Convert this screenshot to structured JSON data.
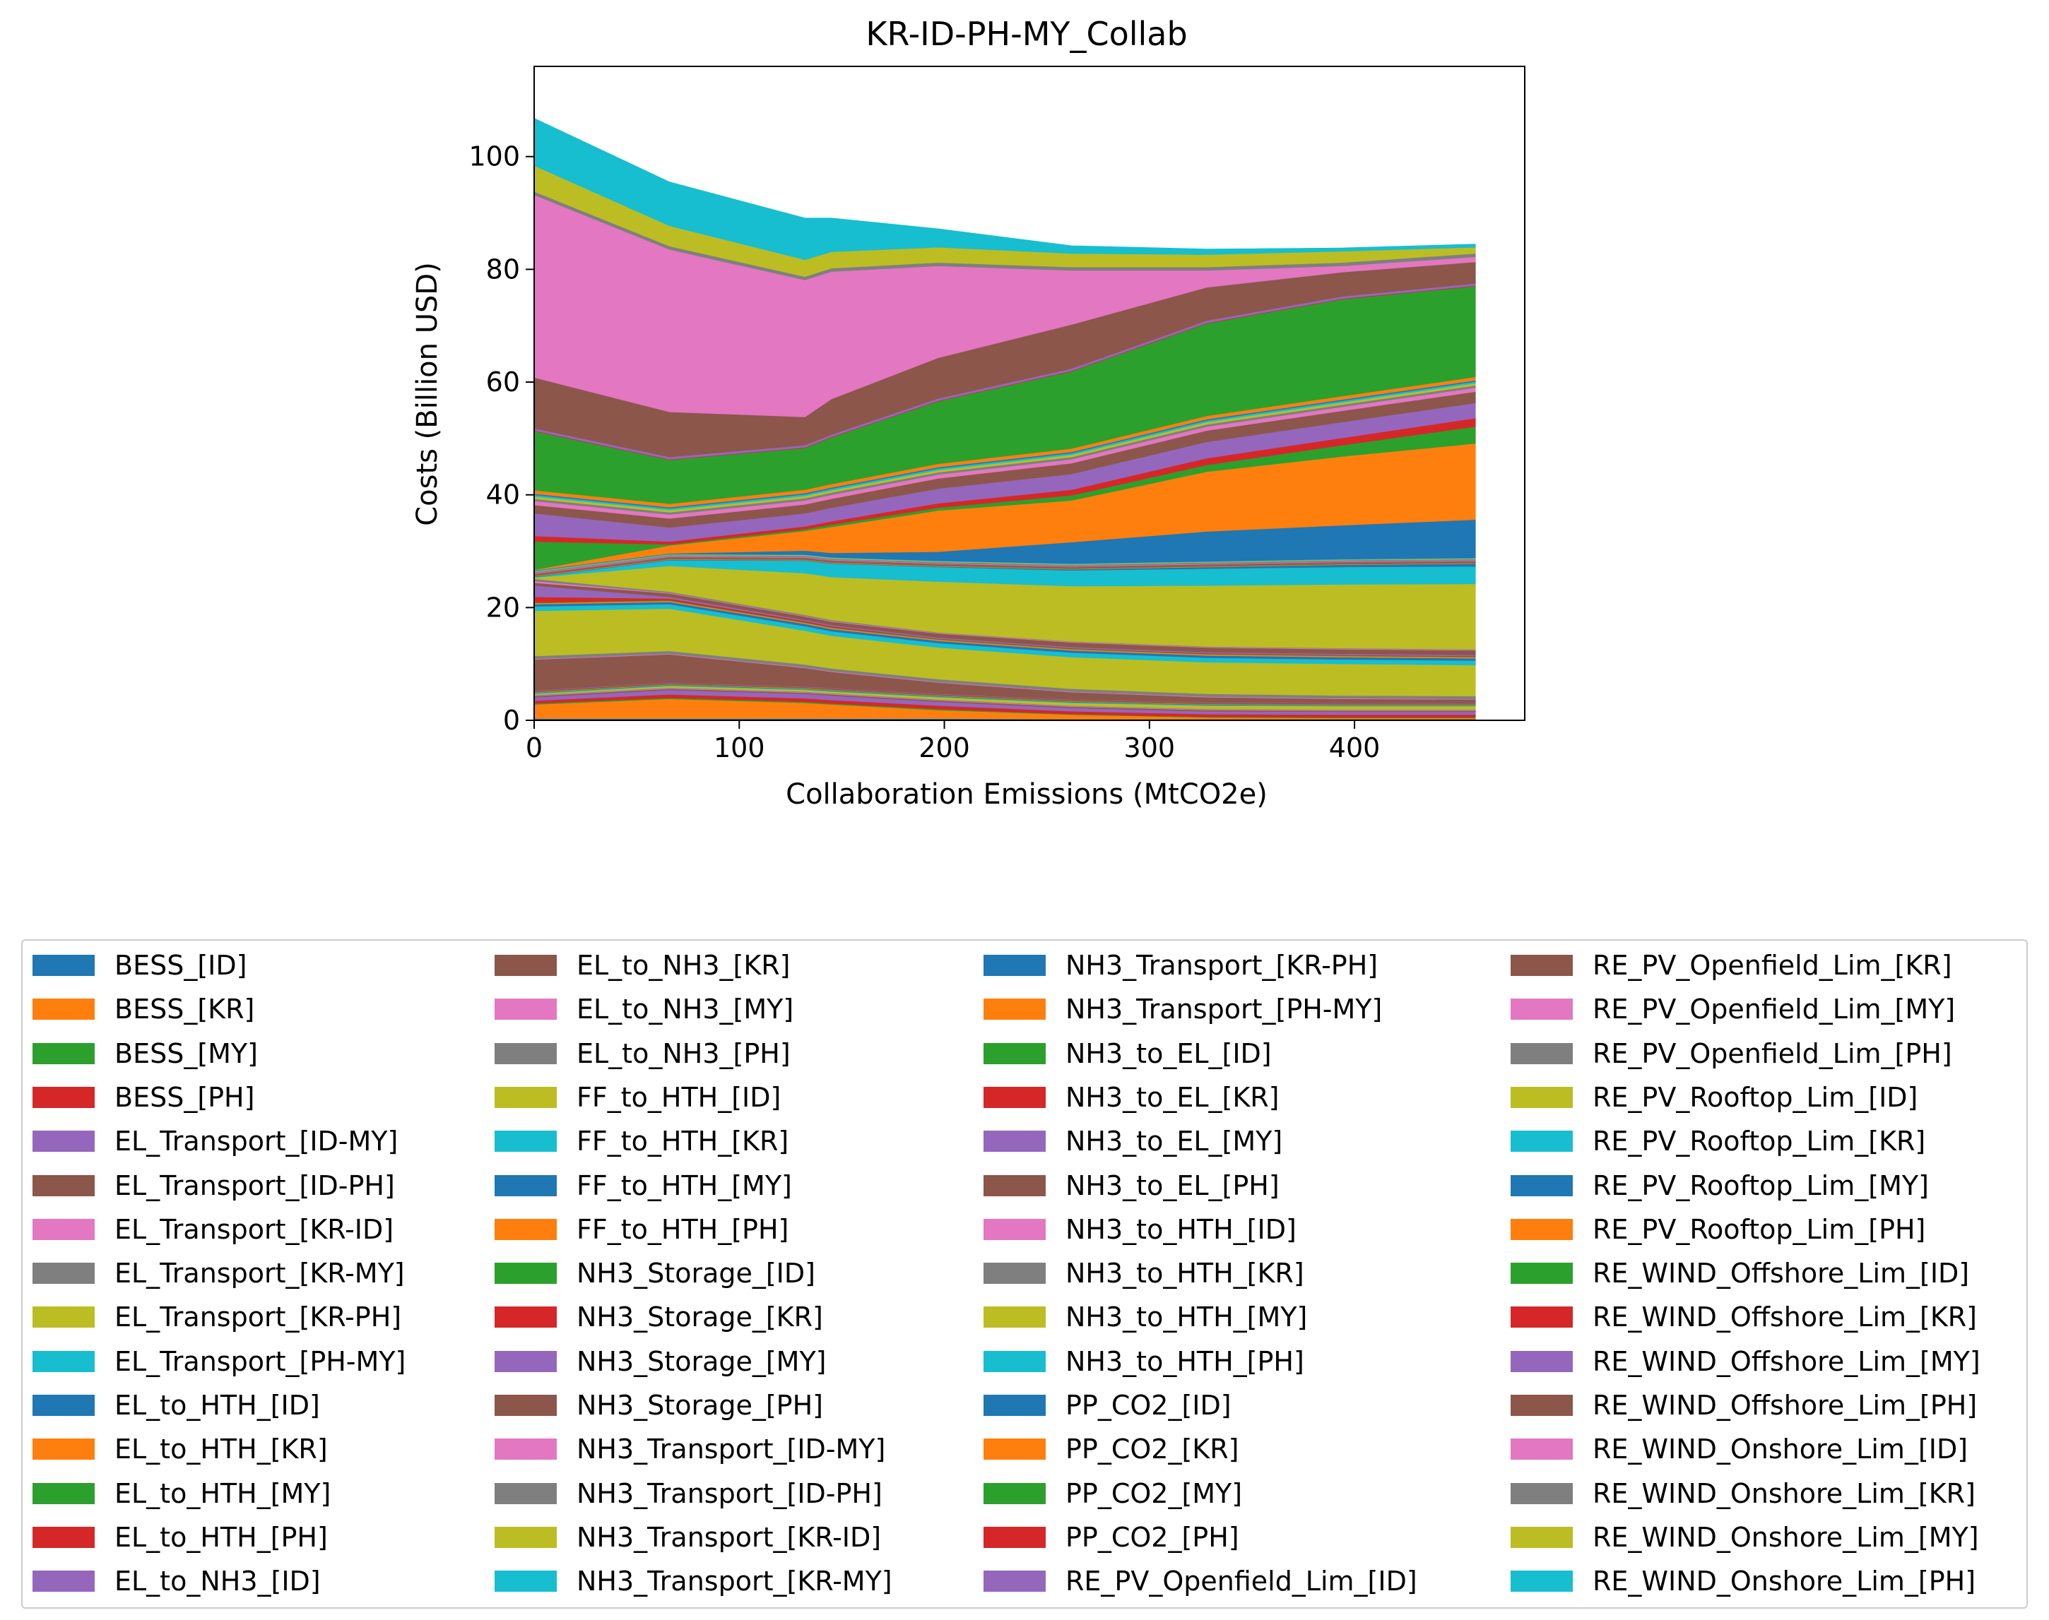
{
  "chart_data": {
    "type": "area",
    "stacked": true,
    "title": "KR-ID-PH-MY_Collab",
    "xlabel": "Collaboration Emissions (MtCO2e)",
    "ylabel": "Costs (Billion USD)",
    "xlim": [
      0,
      483
    ],
    "ylim": [
      0,
      116
    ],
    "xticks": [
      0,
      100,
      200,
      300,
      400
    ],
    "yticks": [
      0,
      20,
      40,
      60,
      80,
      100
    ],
    "x": [
      0,
      66,
      132,
      145,
      197,
      262,
      328,
      394,
      459
    ],
    "series": [
      {
        "name": "BESS_[ID]",
        "color": "#1f77b4",
        "values": [
          0.3,
          0.3,
          0.3,
          0.3,
          0.3,
          0.2,
          0.2,
          0.2,
          0.2
        ]
      },
      {
        "name": "BESS_[KR]",
        "color": "#ff7f0e",
        "values": [
          2.5,
          3.5,
          2.8,
          2.5,
          1.5,
          0.8,
          0.3,
          0.2,
          0.2
        ]
      },
      {
        "name": "BESS_[MY]",
        "color": "#2ca02c",
        "values": [
          0.2,
          0.2,
          0.2,
          0.2,
          0.2,
          0.1,
          0.1,
          0.1,
          0.1
        ]
      },
      {
        "name": "BESS_[PH]",
        "color": "#d62728",
        "values": [
          0.5,
          0.6,
          0.6,
          0.6,
          0.6,
          0.5,
          0.5,
          0.5,
          0.5
        ]
      },
      {
        "name": "EL_Transport_[ID-MY]",
        "color": "#9467bd",
        "values": [
          0.6,
          0.8,
          0.8,
          0.8,
          0.7,
          0.6,
          0.5,
          0.5,
          0.5
        ]
      },
      {
        "name": "EL_Transport_[ID-PH]",
        "color": "#8c564b",
        "values": [
          0.2,
          0.2,
          0.2,
          0.2,
          0.2,
          0.2,
          0.2,
          0.2,
          0.2
        ]
      },
      {
        "name": "EL_Transport_[KR-ID]",
        "color": "#e377c2",
        "values": [
          0.1,
          0.1,
          0.1,
          0.1,
          0.1,
          0.1,
          0.1,
          0.1,
          0.1
        ]
      },
      {
        "name": "EL_Transport_[KR-MY]",
        "color": "#7f7f7f",
        "values": [
          0.1,
          0.1,
          0.1,
          0.1,
          0.1,
          0.1,
          0.1,
          0.1,
          0.1
        ]
      },
      {
        "name": "EL_Transport_[KR-PH]",
        "color": "#bcbd22",
        "values": [
          0.2,
          0.3,
          0.3,
          0.3,
          0.4,
          0.5,
          0.6,
          0.6,
          0.6
        ]
      },
      {
        "name": "EL_Transport_[PH-MY]",
        "color": "#17becf",
        "values": [
          0.1,
          0.1,
          0.1,
          0.1,
          0.1,
          0.1,
          0.1,
          0.1,
          0.1
        ]
      },
      {
        "name": "EL_to_HTH_[ID]",
        "color": "#1f77b4",
        "values": [
          0.1,
          0.1,
          0.1,
          0.1,
          0.1,
          0.1,
          0.1,
          0.1,
          0.1
        ]
      },
      {
        "name": "EL_to_HTH_[KR]",
        "color": "#ff7f0e",
        "values": [
          0.1,
          0.1,
          0.1,
          0.1,
          0.1,
          0.1,
          0.1,
          0.1,
          0.1
        ]
      },
      {
        "name": "EL_to_HTH_[MY]",
        "color": "#2ca02c",
        "values": [
          0.1,
          0.1,
          0.1,
          0.1,
          0.1,
          0.1,
          0.1,
          0.1,
          0.1
        ]
      },
      {
        "name": "EL_to_HTH_[PH]",
        "color": "#d62728",
        "values": [
          0.1,
          0.1,
          0.1,
          0.1,
          0.1,
          0.1,
          0.1,
          0.1,
          0.1
        ]
      },
      {
        "name": "EL_to_NH3_[ID]",
        "color": "#9467bd",
        "values": [
          0.1,
          0.1,
          0.1,
          0.1,
          0.1,
          0.1,
          0.1,
          0.1,
          0.1
        ]
      },
      {
        "name": "EL_to_NH3_[KR]",
        "color": "#8c564b",
        "values": [
          5.5,
          5.0,
          3.3,
          2.9,
          2.0,
          1.3,
          0.9,
          0.7,
          0.6
        ]
      },
      {
        "name": "EL_to_NH3_[MY]",
        "color": "#e377c2",
        "values": [
          0.1,
          0.1,
          0.1,
          0.1,
          0.1,
          0.1,
          0.1,
          0.1,
          0.1
        ]
      },
      {
        "name": "EL_to_NH3_[PH]",
        "color": "#7f7f7f",
        "values": [
          0.5,
          0.5,
          0.5,
          0.5,
          0.5,
          0.5,
          0.5,
          0.5,
          0.5
        ]
      },
      {
        "name": "FF_to_HTH_[ID]",
        "color": "#bcbd22",
        "values": [
          8.0,
          7.5,
          6.0,
          5.8,
          5.6,
          5.6,
          5.6,
          5.6,
          5.5
        ]
      },
      {
        "name": "FF_to_HTH_[KR]",
        "color": "#17becf",
        "values": [
          0.8,
          0.8,
          0.8,
          0.8,
          0.8,
          0.8,
          0.8,
          0.8,
          0.8
        ]
      },
      {
        "name": "FF_to_HTH_[MY]",
        "color": "#1f77b4",
        "values": [
          0.4,
          0.4,
          0.4,
          0.4,
          0.4,
          0.4,
          0.4,
          0.4,
          0.4
        ]
      },
      {
        "name": "FF_to_HTH_[PH]",
        "color": "#ff7f0e",
        "values": [
          0.2,
          0.2,
          0.2,
          0.2,
          0.2,
          0.2,
          0.2,
          0.2,
          0.2
        ]
      },
      {
        "name": "NH3_Storage_[ID]",
        "color": "#2ca02c",
        "values": [
          0.1,
          0.1,
          0.1,
          0.1,
          0.1,
          0.1,
          0.1,
          0.1,
          0.1
        ]
      },
      {
        "name": "NH3_Storage_[KR]",
        "color": "#d62728",
        "values": [
          1.0,
          0.3,
          0.2,
          0.2,
          0.1,
          0.1,
          0.1,
          0.1,
          0.1
        ]
      },
      {
        "name": "NH3_Storage_[MY]",
        "color": "#9467bd",
        "values": [
          2.0,
          0.3,
          0.2,
          0.2,
          0.2,
          0.2,
          0.2,
          0.2,
          0.2
        ]
      },
      {
        "name": "NH3_Storage_[PH]",
        "color": "#8c564b",
        "values": [
          0.5,
          0.6,
          0.6,
          0.6,
          0.7,
          0.8,
          0.8,
          0.8,
          0.8
        ]
      },
      {
        "name": "NH3_Transport_[ID-MY]",
        "color": "#e377c2",
        "values": [
          0.3,
          0.1,
          0.1,
          0.1,
          0.1,
          0.1,
          0.1,
          0.1,
          0.1
        ]
      },
      {
        "name": "NH3_Transport_[ID-PH]",
        "color": "#7f7f7f",
        "values": [
          0.4,
          0.2,
          0.2,
          0.2,
          0.1,
          0.1,
          0.1,
          0.1,
          0.1
        ]
      },
      {
        "name": "NH3_Transport_[KR-ID]",
        "color": "#bcbd22",
        "values": [
          0.2,
          4.6,
          7.4,
          7.6,
          9.0,
          9.8,
          10.8,
          11.3,
          11.6
        ]
      },
      {
        "name": "NH3_Transport_[KR-MY]",
        "color": "#17becf",
        "values": [
          0.1,
          1.0,
          2.2,
          2.4,
          2.6,
          2.8,
          3.0,
          3.1,
          3.1
        ]
      },
      {
        "name": "NH3_Transport_[KR-PH]",
        "color": "#1f77b4",
        "values": [
          0.1,
          0.1,
          0.1,
          0.1,
          0.1,
          0.2,
          0.3,
          0.4,
          0.5
        ]
      },
      {
        "name": "NH3_Transport_[PH-MY]",
        "color": "#ff7f0e",
        "values": [
          0.1,
          0.1,
          0.1,
          0.1,
          0.1,
          0.1,
          0.1,
          0.1,
          0.1
        ]
      },
      {
        "name": "NH3_to_EL_[ID]",
        "color": "#2ca02c",
        "values": [
          0.1,
          0.1,
          0.1,
          0.1,
          0.1,
          0.1,
          0.1,
          0.1,
          0.1
        ]
      },
      {
        "name": "NH3_to_EL_[KR]",
        "color": "#d62728",
        "values": [
          0.1,
          0.1,
          0.1,
          0.1,
          0.1,
          0.1,
          0.1,
          0.1,
          0.1
        ]
      },
      {
        "name": "NH3_to_EL_[MY]",
        "color": "#9467bd",
        "values": [
          0.1,
          0.1,
          0.1,
          0.1,
          0.1,
          0.1,
          0.1,
          0.1,
          0.1
        ]
      },
      {
        "name": "NH3_to_EL_[PH]",
        "color": "#8c564b",
        "values": [
          0.1,
          0.1,
          0.1,
          0.1,
          0.1,
          0.1,
          0.1,
          0.1,
          0.1
        ]
      },
      {
        "name": "NH3_to_HTH_[ID]",
        "color": "#e377c2",
        "values": [
          0.1,
          0.1,
          0.1,
          0.1,
          0.1,
          0.1,
          0.1,
          0.1,
          0.1
        ]
      },
      {
        "name": "NH3_to_HTH_[KR]",
        "color": "#7f7f7f",
        "values": [
          0.2,
          0.2,
          0.2,
          0.2,
          0.2,
          0.2,
          0.2,
          0.2,
          0.2
        ]
      },
      {
        "name": "NH3_to_HTH_[MY]",
        "color": "#bcbd22",
        "values": [
          0.1,
          0.1,
          0.1,
          0.1,
          0.1,
          0.1,
          0.1,
          0.1,
          0.1
        ]
      },
      {
        "name": "NH3_to_HTH_[PH]",
        "color": "#17becf",
        "values": [
          0.1,
          0.1,
          0.1,
          0.1,
          0.1,
          0.1,
          0.1,
          0.1,
          0.1
        ]
      },
      {
        "name": "PP_CO2_[ID]",
        "color": "#1f77b4",
        "values": [
          0.1,
          0.1,
          0.7,
          0.8,
          1.6,
          3.8,
          5.3,
          6.0,
          6.8
        ]
      },
      {
        "name": "PP_CO2_[KR]",
        "color": "#ff7f0e",
        "values": [
          0.1,
          1.4,
          3.5,
          4.6,
          7.3,
          7.4,
          10.6,
          12.2,
          13.5
        ]
      },
      {
        "name": "PP_CO2_[MY]",
        "color": "#2ca02c",
        "values": [
          5.0,
          0.2,
          0.3,
          0.4,
          0.5,
          0.9,
          1.2,
          2.0,
          3.0
        ]
      },
      {
        "name": "PP_CO2_[PH]",
        "color": "#d62728",
        "values": [
          1.0,
          0.5,
          0.5,
          0.6,
          0.8,
          1.0,
          1.2,
          1.3,
          1.5
        ]
      },
      {
        "name": "RE_PV_Openfield_Lim_[ID]",
        "color": "#9467bd",
        "values": [
          4.0,
          2.5,
          2.3,
          2.4,
          2.6,
          2.8,
          2.9,
          2.8,
          2.7
        ]
      },
      {
        "name": "RE_PV_Openfield_Lim_[KR]",
        "color": "#8c564b",
        "values": [
          1.5,
          1.6,
          1.6,
          1.6,
          1.8,
          1.9,
          2.0,
          2.0,
          2.0
        ]
      },
      {
        "name": "RE_PV_Openfield_Lim_[MY]",
        "color": "#e377c2",
        "values": [
          0.7,
          0.7,
          0.7,
          0.7,
          0.7,
          0.7,
          0.7,
          0.7,
          0.7
        ]
      },
      {
        "name": "RE_PV_Openfield_Lim_[PH]",
        "color": "#7f7f7f",
        "values": [
          0.4,
          0.4,
          0.4,
          0.4,
          0.4,
          0.4,
          0.4,
          0.4,
          0.4
        ]
      },
      {
        "name": "RE_PV_Rooftop_Lim_[ID]",
        "color": "#bcbd22",
        "values": [
          0.4,
          0.4,
          0.4,
          0.4,
          0.4,
          0.4,
          0.4,
          0.4,
          0.4
        ]
      },
      {
        "name": "RE_PV_Rooftop_Lim_[KR]",
        "color": "#17becf",
        "values": [
          0.3,
          0.3,
          0.3,
          0.3,
          0.3,
          0.3,
          0.3,
          0.3,
          0.3
        ]
      },
      {
        "name": "RE_PV_Rooftop_Lim_[MY]",
        "color": "#1f77b4",
        "values": [
          0.2,
          0.2,
          0.2,
          0.2,
          0.2,
          0.2,
          0.2,
          0.2,
          0.2
        ]
      },
      {
        "name": "RE_PV_Rooftop_Lim_[PH]",
        "color": "#ff7f0e",
        "values": [
          0.6,
          0.6,
          0.6,
          0.6,
          0.6,
          0.6,
          0.6,
          0.6,
          0.6
        ]
      },
      {
        "name": "RE_WIND_Offshore_Lim_[ID]",
        "color": "#2ca02c",
        "values": [
          10.5,
          7.8,
          7.4,
          8.3,
          11.1,
          13.7,
          16.4,
          17.2,
          16.1
        ]
      },
      {
        "name": "RE_WIND_Offshore_Lim_[KR]",
        "color": "#d62728",
        "values": [
          0.1,
          0.1,
          0.1,
          0.1,
          0.1,
          0.1,
          0.1,
          0.1,
          0.1
        ]
      },
      {
        "name": "RE_WIND_Offshore_Lim_[MY]",
        "color": "#9467bd",
        "values": [
          0.4,
          0.4,
          0.4,
          0.4,
          0.4,
          0.4,
          0.4,
          0.4,
          0.4
        ]
      },
      {
        "name": "RE_WIND_Offshore_Lim_[PH]",
        "color": "#8c564b",
        "values": [
          9.0,
          8.0,
          5.0,
          6.3,
          7.2,
          7.8,
          5.9,
          4.3,
          3.8
        ]
      },
      {
        "name": "RE_WIND_Onshore_Lim_[ID]",
        "color": "#e377c2",
        "values": [
          32.4,
          28.8,
          24.3,
          22.6,
          16.3,
          9.6,
          3.0,
          1.1,
          0.9
        ]
      },
      {
        "name": "RE_WIND_Onshore_Lim_[KR]",
        "color": "#7f7f7f",
        "values": [
          0.6,
          0.6,
          0.6,
          0.6,
          0.6,
          0.6,
          0.6,
          0.6,
          0.6
        ]
      },
      {
        "name": "RE_WIND_Onshore_Lim_[MY]",
        "color": "#bcbd22",
        "values": [
          4.6,
          3.6,
          3.0,
          2.9,
          2.7,
          2.4,
          2.2,
          2.0,
          1.1
        ]
      },
      {
        "name": "RE_WIND_Onshore_Lim_[PH]",
        "color": "#17becf",
        "values": [
          8.4,
          7.8,
          7.4,
          6.0,
          3.3,
          1.4,
          1.0,
          0.6,
          0.6
        ]
      }
    ]
  }
}
